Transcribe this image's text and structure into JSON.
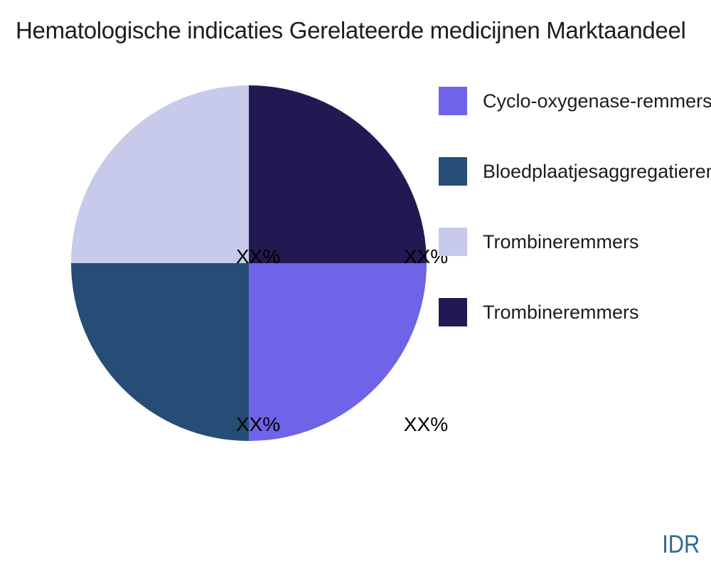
{
  "title": "Hematologische indicaties Gerelateerde medicijnen Marktaandeel",
  "watermark": "IDR",
  "colors": {
    "background": "#ffffff",
    "title_text": "#1c1c1c",
    "legend_text": "#1c1c1c",
    "pct_label_text": "#000000",
    "watermark_text": "#31688e"
  },
  "chart_data": {
    "type": "pie",
    "title": "Hematologische indicaties Gerelateerde medicijnen Marktaandeel",
    "legend_position": "right",
    "start_angle_deg": 0,
    "direction": "clockwise",
    "values_masked": true,
    "slices": [
      {
        "label": "Cyclo-oxygenase-remmers",
        "value": 25,
        "pct_label": "XX%",
        "color": "#6f63e8",
        "wedge_position": "bottom-right"
      },
      {
        "label": "Bloedplaatjesaggregatieremmers",
        "value": 25,
        "pct_label": "XX%",
        "color": "#254d75",
        "wedge_position": "bottom-left"
      },
      {
        "label": "Trombineremmers",
        "value": 25,
        "pct_label": "XX%",
        "color": "#c8caec",
        "wedge_position": "top-left"
      },
      {
        "label": "Trombineremmers",
        "value": 25,
        "pct_label": "XX%",
        "color": "#211a52",
        "wedge_position": "top-right"
      }
    ]
  }
}
